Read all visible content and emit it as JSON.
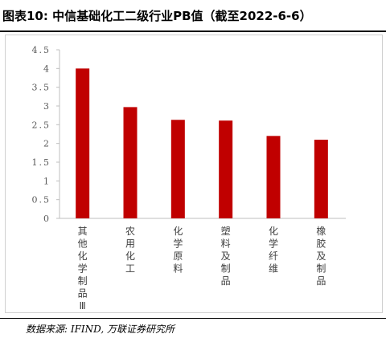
{
  "header": {
    "title": "图表10: 中信基础化工二级行业PB值（截至2022-6-6）"
  },
  "footer": {
    "source": "数据来源: IFIND, 万联证券研究所"
  },
  "chart_data": {
    "type": "bar",
    "title": "",
    "xlabel": "",
    "ylabel": "",
    "categories": [
      "其他化学制品Ⅲ",
      "农用化工",
      "化学原料",
      "塑料及制品",
      "化学纤维",
      "橡胶及制品"
    ],
    "values": [
      4.0,
      2.97,
      2.63,
      2.61,
      2.2,
      2.1
    ],
    "ylim": [
      0,
      4.5
    ],
    "yticks": [
      "0",
      "0.5",
      "1",
      "1.5",
      "2",
      "2.5",
      "3",
      "3.5",
      "4",
      "4.5"
    ],
    "bar_color": "#c00000",
    "grid": false,
    "legend": "none"
  }
}
